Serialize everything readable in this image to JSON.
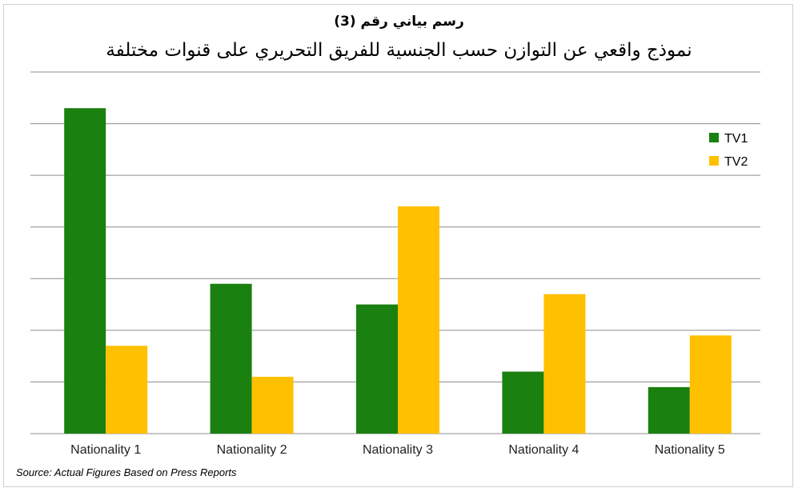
{
  "chart_data": {
    "type": "bar",
    "title": "رسم بياني رقم (3)",
    "subtitle": "نموذج واقعي عن التوازن حسب الجنسية للفريق التحريري على قنوات مختلفة",
    "categories": [
      "Nationality 1",
      "Nationality 2",
      "Nationality 3",
      "Nationality 4",
      "Nationality 5"
    ],
    "series": [
      {
        "name": "TV1",
        "color": "#1a8010",
        "values": [
          6.3,
          2.9,
          2.5,
          1.2,
          0.9
        ]
      },
      {
        "name": "TV2",
        "color": "#ffc000",
        "values": [
          1.7,
          1.1,
          4.4,
          2.7,
          1.9
        ]
      }
    ],
    "ylim": [
      0,
      7
    ],
    "y_tick_labels_shown": false,
    "grid": true,
    "legend_position": "top-right",
    "source": "Source: Actual Figures Based on Press Reports"
  }
}
